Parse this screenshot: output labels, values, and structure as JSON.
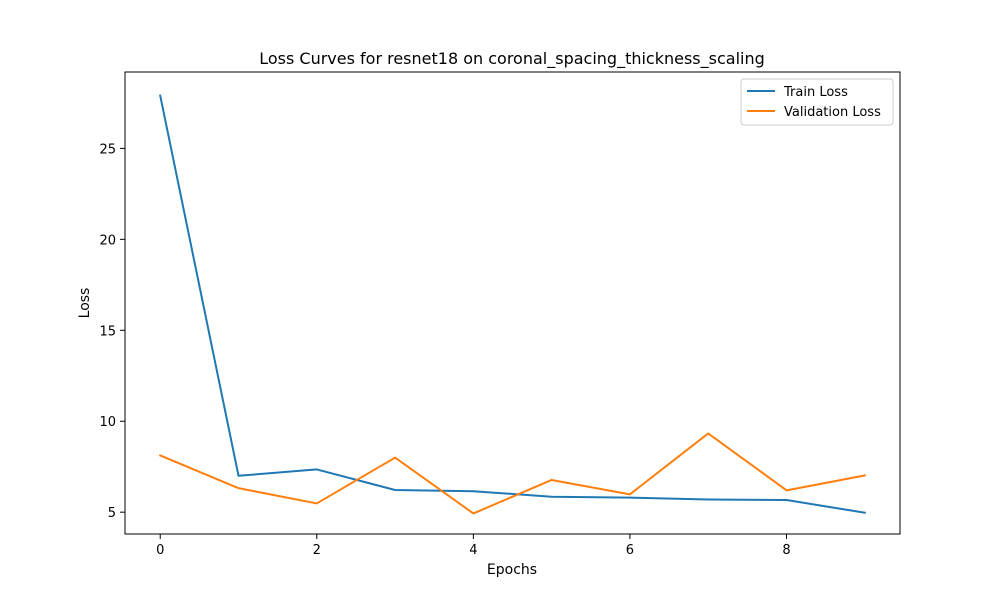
{
  "chart_data": {
    "type": "line",
    "title": "Loss Curves for resnet18 on coronal_spacing_thickness_scaling",
    "xlabel": "Epochs",
    "ylabel": "Loss",
    "x": [
      0,
      1,
      2,
      3,
      4,
      5,
      6,
      7,
      8,
      9
    ],
    "xlim": [
      -0.45,
      9.45
    ],
    "ylim": [
      3.8,
      29.2
    ],
    "xticks": [
      0,
      2,
      4,
      6,
      8
    ],
    "yticks": [
      5,
      10,
      15,
      20,
      25
    ],
    "grid": false,
    "legend_position": "top-right",
    "series": [
      {
        "name": "Train Loss",
        "color": "#1f77b4",
        "values": [
          27.9,
          7.0,
          7.35,
          6.22,
          6.15,
          5.85,
          5.8,
          5.7,
          5.67,
          4.97
        ]
      },
      {
        "name": "Validation Loss",
        "color": "#ff7f0e",
        "values": [
          8.12,
          6.32,
          5.48,
          8.0,
          4.93,
          6.77,
          5.98,
          9.33,
          6.2,
          7.02
        ]
      }
    ]
  }
}
